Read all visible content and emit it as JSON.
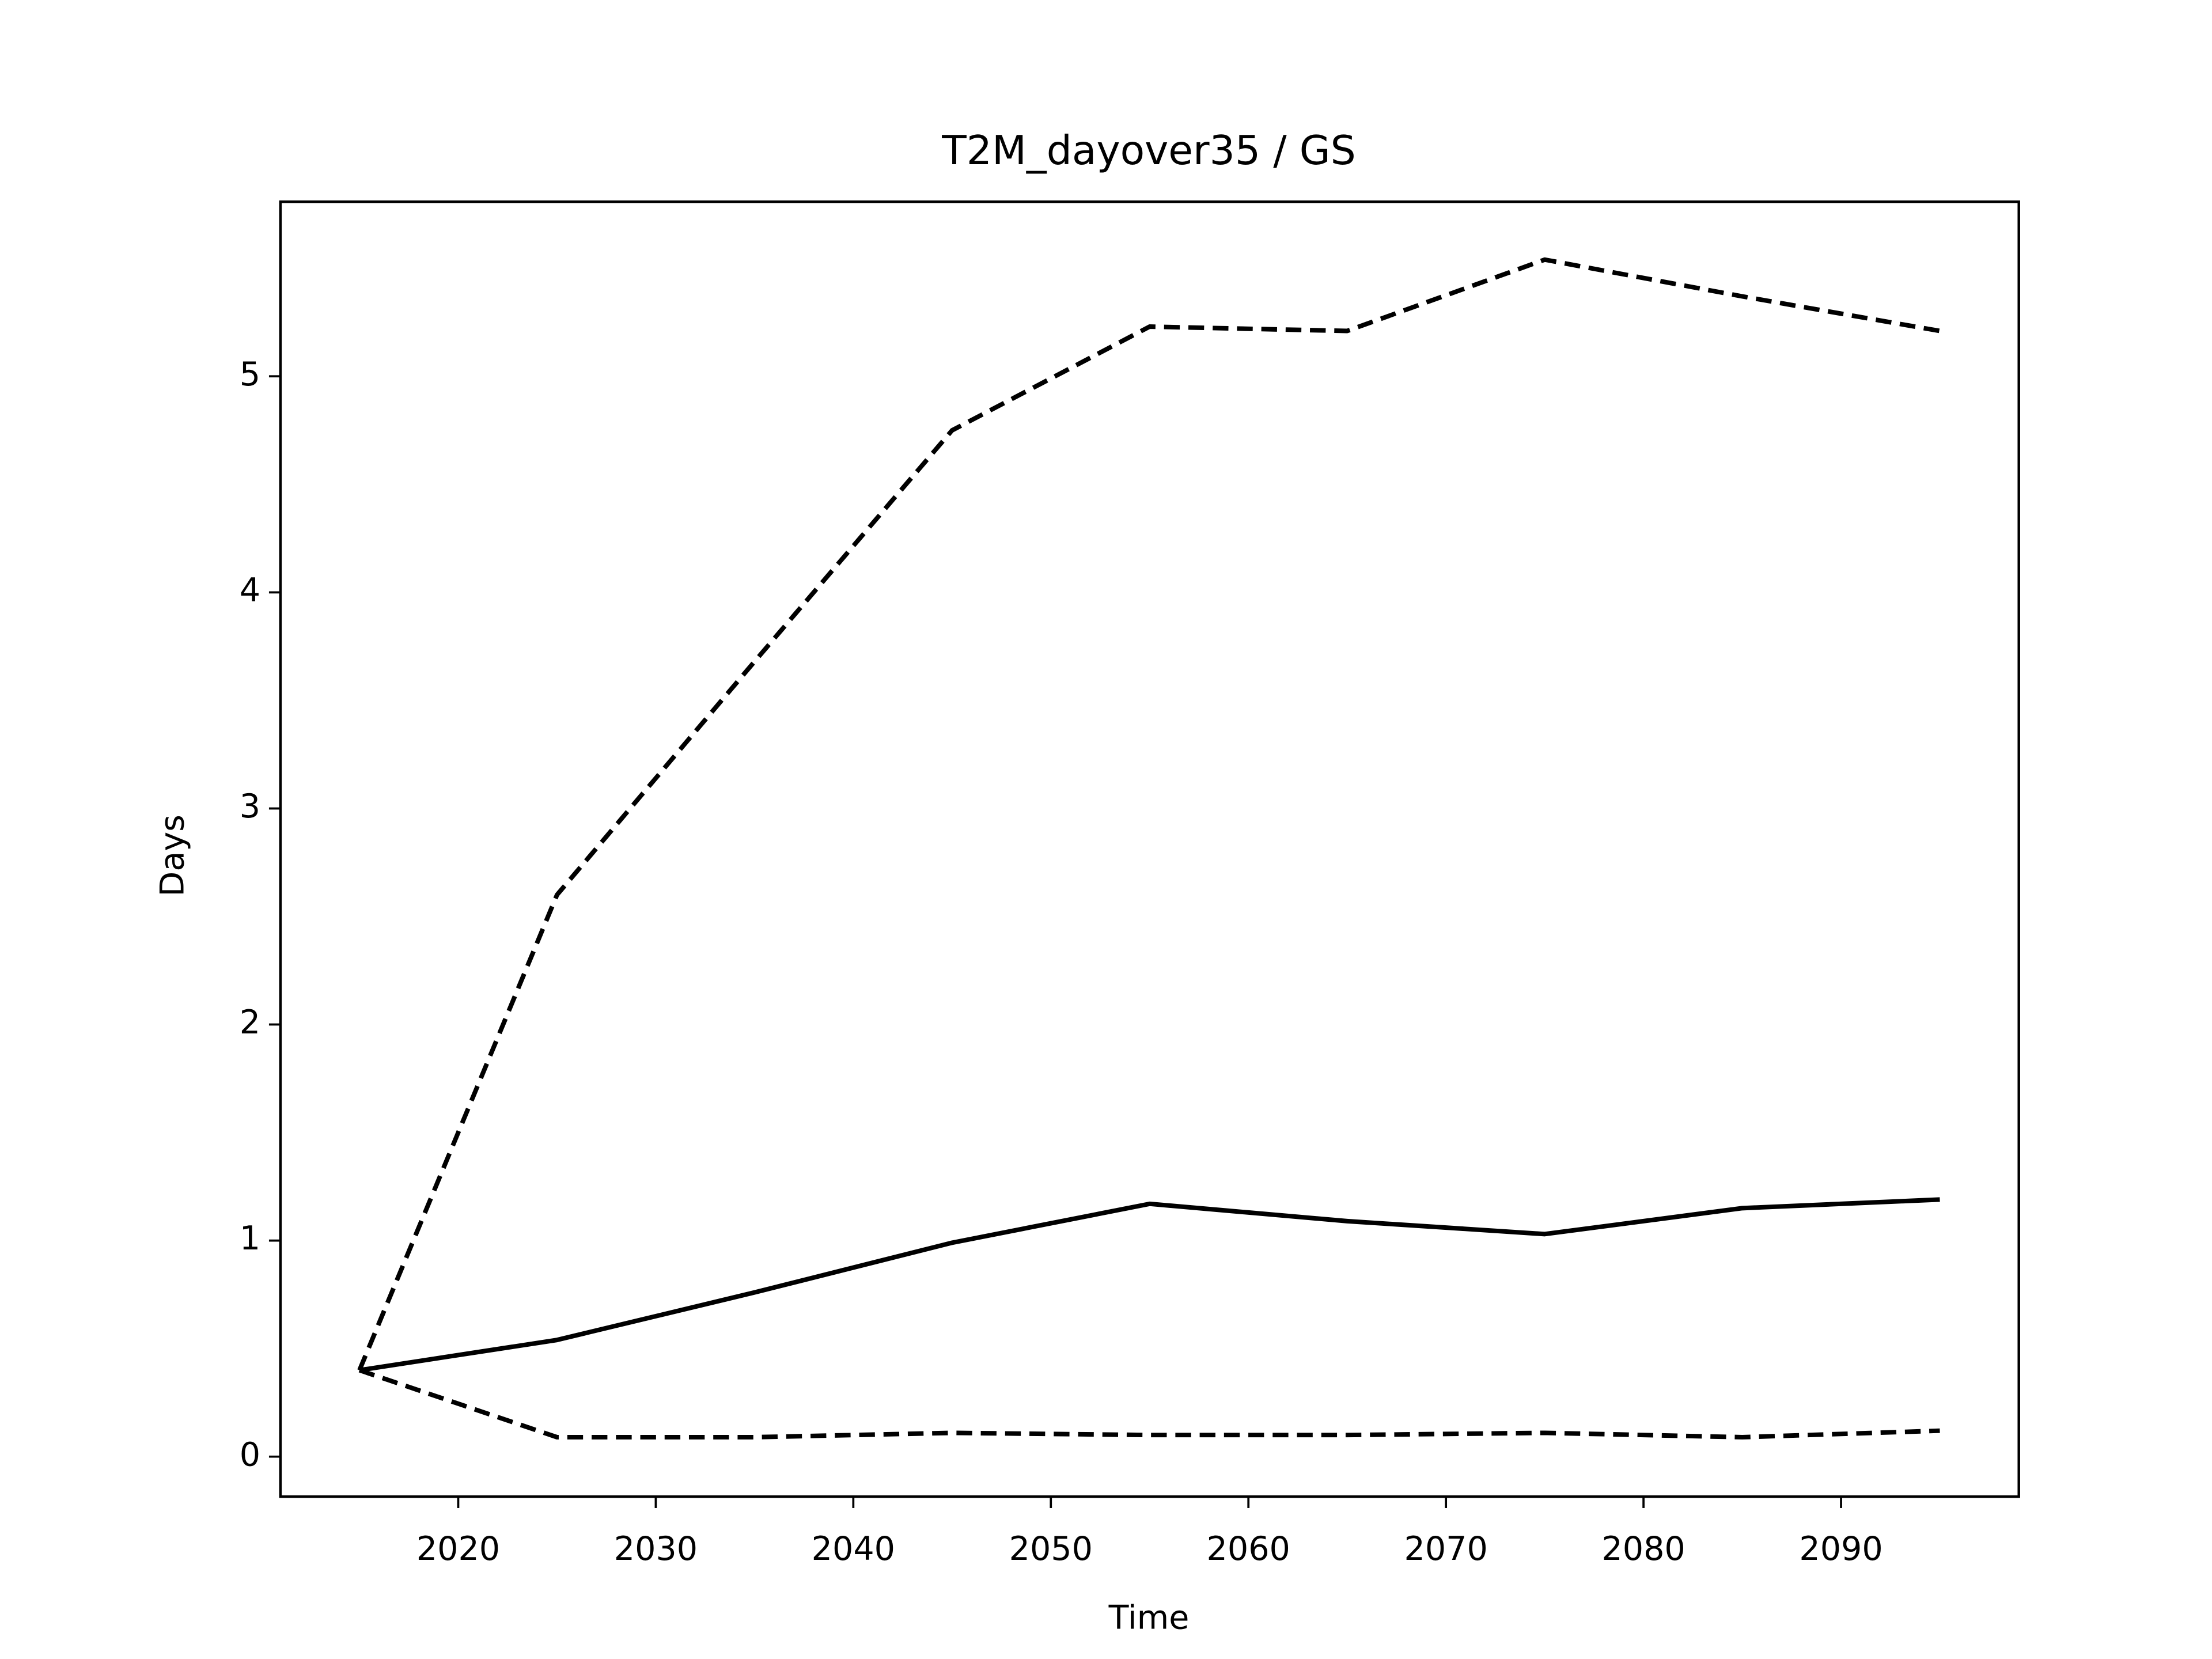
{
  "chart_data": {
    "type": "line",
    "title": "T2M_dayover35 / GS",
    "x_label": "Time",
    "y_label": "Days",
    "x": [
      2015,
      2025,
      2035,
      2045,
      2055,
      2065,
      2075,
      2085,
      2095
    ],
    "series": [
      {
        "color": "#000000",
        "dashed": false,
        "values": [
          0.4,
          0.54,
          0.76,
          0.99,
          1.17,
          1.09,
          1.03,
          1.15,
          1.19
        ]
      },
      {
        "color": "#000000",
        "dashed": true,
        "values": [
          0.4,
          2.6,
          3.68,
          4.75,
          5.23,
          5.21,
          5.54,
          5.37,
          5.21
        ]
      },
      {
        "color": "#000000",
        "dashed": true,
        "values": [
          0.4,
          0.09,
          0.09,
          0.11,
          0.1,
          0.1,
          0.11,
          0.09,
          0.12
        ]
      }
    ],
    "xlim": [
      2011,
      2099
    ],
    "ylim": [
      -0.185,
      5.808
    ],
    "xticks": [
      2020,
      2030,
      2040,
      2050,
      2060,
      2070,
      2080,
      2090
    ],
    "yticks": [
      0,
      1,
      2,
      3,
      4,
      5
    ],
    "grid": false
  }
}
